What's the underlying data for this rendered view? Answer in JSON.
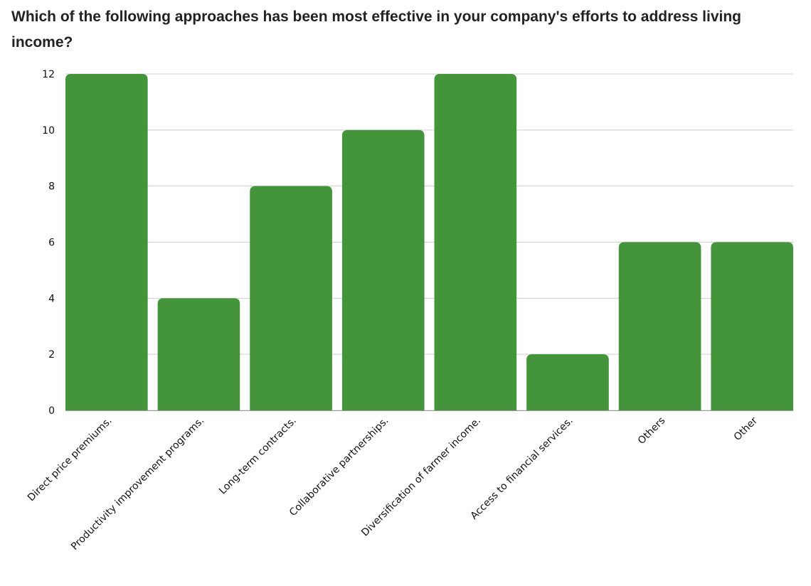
{
  "chart_data": {
    "type": "bar",
    "title": "Which of the following approaches has been most effective in your company's efforts to address living income?",
    "categories": [
      "Direct price premiums.",
      "Productivity improvement programs.",
      "Long-term contracts.",
      "Collaborative partnerships.",
      "Diversification of farmer income.",
      "Access to financial services.",
      "Others",
      "Other"
    ],
    "values": [
      12,
      4,
      8,
      10,
      12,
      2,
      6,
      6
    ],
    "xlabel": "",
    "ylabel": "",
    "ylim": [
      0,
      12
    ],
    "yticks": [
      0,
      2,
      4,
      6,
      8,
      10,
      12
    ],
    "grid": true,
    "bar_color": "#43943a"
  }
}
